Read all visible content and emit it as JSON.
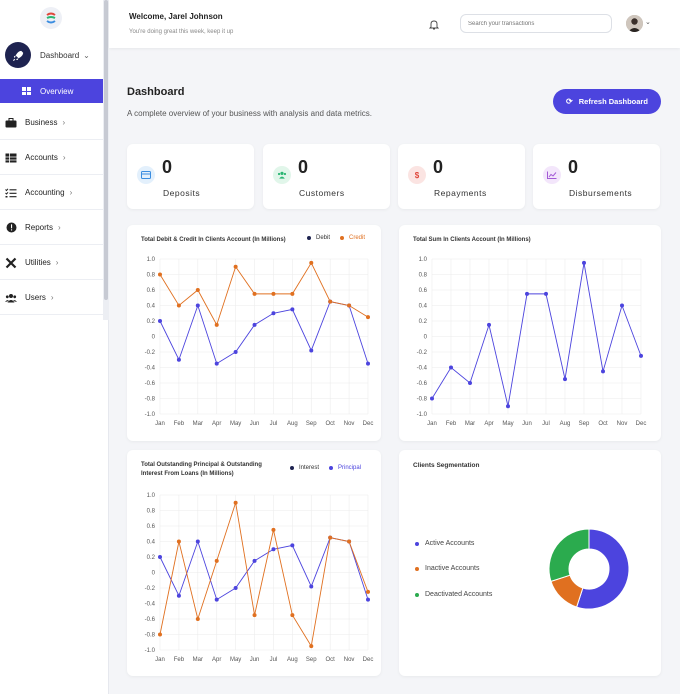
{
  "sidebar": {
    "dashboard_label": "Dashboard",
    "overview_label": "Overview",
    "items": [
      {
        "label": "Business"
      },
      {
        "label": "Accounts"
      },
      {
        "label": "Accounting"
      },
      {
        "label": "Reports"
      },
      {
        "label": "Utilities"
      },
      {
        "label": "Users"
      }
    ]
  },
  "header": {
    "welcome": "Welcome, Jarel Johnson",
    "subtitle": "You're doing great this week, keep it up",
    "search_placeholder": "Search your transactions"
  },
  "page": {
    "title": "Dashboard",
    "subtitle": "A complete overview of your business with analysis and data metrics.",
    "refresh_label": "Refresh Dashboard"
  },
  "stats": [
    {
      "value": "0",
      "label": "Deposits",
      "icon": "card-icon",
      "color": "#3b8de0",
      "bg": "#e3f0fc"
    },
    {
      "value": "0",
      "label": "Customers",
      "icon": "users-icon",
      "color": "#2bb673",
      "bg": "#e1f6ea"
    },
    {
      "value": "0",
      "label": "Repayments",
      "icon": "dollar-icon",
      "color": "#e0473b",
      "bg": "#fbe4e2"
    },
    {
      "value": "0",
      "label": "Disbursements",
      "icon": "chart-icon",
      "color": "#a35ad6",
      "bg": "#f3e6fb"
    }
  ],
  "colors": {
    "accent": "#4c44de",
    "orange": "#e07020",
    "navy": "#1e2350",
    "green": "#2bab4e"
  },
  "chart_data": [
    {
      "type": "line",
      "title": "Total Debit & Credit In Clients Account (In Millions)",
      "categories": [
        "Jan",
        "Feb",
        "Mar",
        "Apr",
        "May",
        "Jun",
        "Jul",
        "Aug",
        "Sep",
        "Oct",
        "Nov",
        "Dec"
      ],
      "ylim": [
        -1.0,
        1.0
      ],
      "yticks": [
        "1.0",
        "0.8",
        "0.6",
        "0.4",
        "0.2",
        "0",
        "-0.2",
        "-0.4",
        "-0.6",
        "-0.8",
        "-1.0"
      ],
      "legend": [
        {
          "name": "Debit",
          "color": "#1e2350"
        },
        {
          "name": "Credit",
          "color": "#e07020"
        }
      ],
      "series": [
        {
          "name": "Debit",
          "color": "#4c44de",
          "values": [
            0.2,
            -0.3,
            0.4,
            -0.35,
            -0.2,
            0.15,
            0.3,
            0.35,
            -0.18,
            0.45,
            0.4,
            -0.35
          ]
        },
        {
          "name": "Credit",
          "color": "#e07020",
          "values": [
            0.8,
            0.4,
            0.6,
            0.15,
            0.9,
            0.55,
            0.55,
            0.55,
            0.95,
            0.45,
            0.4,
            0.25
          ]
        }
      ]
    },
    {
      "type": "line",
      "title": "Total Sum In Clients Account (In Millions)",
      "categories": [
        "Jan",
        "Feb",
        "Mar",
        "Apr",
        "May",
        "Jun",
        "Jul",
        "Aug",
        "Sep",
        "Oct",
        "Nov",
        "Dec"
      ],
      "ylim": [
        -1.0,
        1.0
      ],
      "yticks": [
        "1.0",
        "0.8",
        "0.6",
        "0.4",
        "0.2",
        "0",
        "-0.2",
        "-0.4",
        "-0.6",
        "-0.8",
        "-1.0"
      ],
      "series": [
        {
          "color": "#4c44de",
          "values": [
            -0.8,
            -0.4,
            -0.6,
            0.15,
            -0.9,
            0.55,
            0.55,
            -0.55,
            0.95,
            -0.45,
            0.4,
            -0.25
          ]
        }
      ]
    },
    {
      "type": "line",
      "title_line1": "Total Outstanding Principal & Outstanding",
      "title_line2": "Interest From Loans (In Millions)",
      "categories": [
        "Jan",
        "Feb",
        "Mar",
        "Apr",
        "May",
        "Jun",
        "Jul",
        "Aug",
        "Sep",
        "Oct",
        "Nov",
        "Dec"
      ],
      "ylim": [
        -1.0,
        1.0
      ],
      "yticks": [
        "1.0",
        "0.8",
        "0.6",
        "0.4",
        "0.2",
        "0",
        "-0.2",
        "-0.4",
        "-0.6",
        "-0.8",
        "-1.0"
      ],
      "legend": [
        {
          "name": "Interest",
          "color": "#1e2350"
        },
        {
          "name": "Principal",
          "color": "#4c44de"
        }
      ],
      "series": [
        {
          "name": "Principal",
          "color": "#4c44de",
          "values": [
            0.2,
            -0.3,
            0.4,
            -0.35,
            -0.2,
            0.15,
            0.3,
            0.35,
            -0.18,
            0.45,
            0.4,
            -0.35
          ]
        },
        {
          "name": "Interest",
          "color": "#e07020",
          "values": [
            -0.8,
            0.4,
            -0.6,
            0.15,
            0.9,
            -0.55,
            0.55,
            -0.55,
            -0.95,
            0.45,
            0.4,
            -0.25
          ]
        }
      ]
    },
    {
      "type": "pie",
      "title": "Clients Segmentation",
      "categories": [
        "Active Accounts",
        "Inactive Accounts",
        "Deactivated Accounts"
      ],
      "values": [
        55,
        15,
        30
      ],
      "colors": [
        "#4c44de",
        "#e07020",
        "#2bab4e"
      ]
    }
  ]
}
